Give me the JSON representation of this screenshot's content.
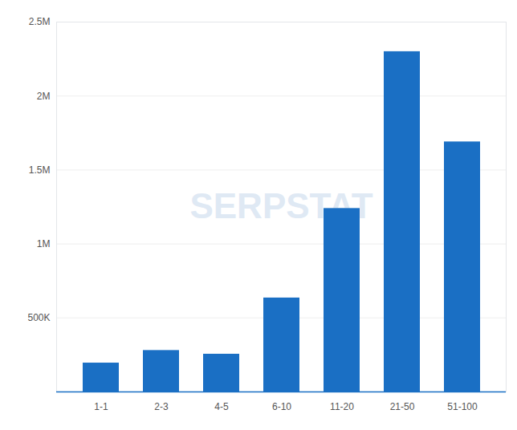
{
  "chart_data": {
    "type": "bar",
    "categories": [
      "1-1",
      "2-3",
      "4-5",
      "6-10",
      "11-20",
      "21-50",
      "51-100"
    ],
    "values": [
      195000,
      280000,
      255000,
      635000,
      1240000,
      2300000,
      1690000
    ],
    "color": "#1a6fc4",
    "ylim": [
      0,
      2500000
    ],
    "yticks": [
      {
        "value": 500000,
        "label": "500K"
      },
      {
        "value": 1000000,
        "label": "1M"
      },
      {
        "value": 1500000,
        "label": "1.5M"
      },
      {
        "value": 2000000,
        "label": "2M"
      },
      {
        "value": 2500000,
        "label": "2.5M"
      }
    ],
    "grid": true,
    "annotations": [
      "SERPSTAT"
    ]
  }
}
